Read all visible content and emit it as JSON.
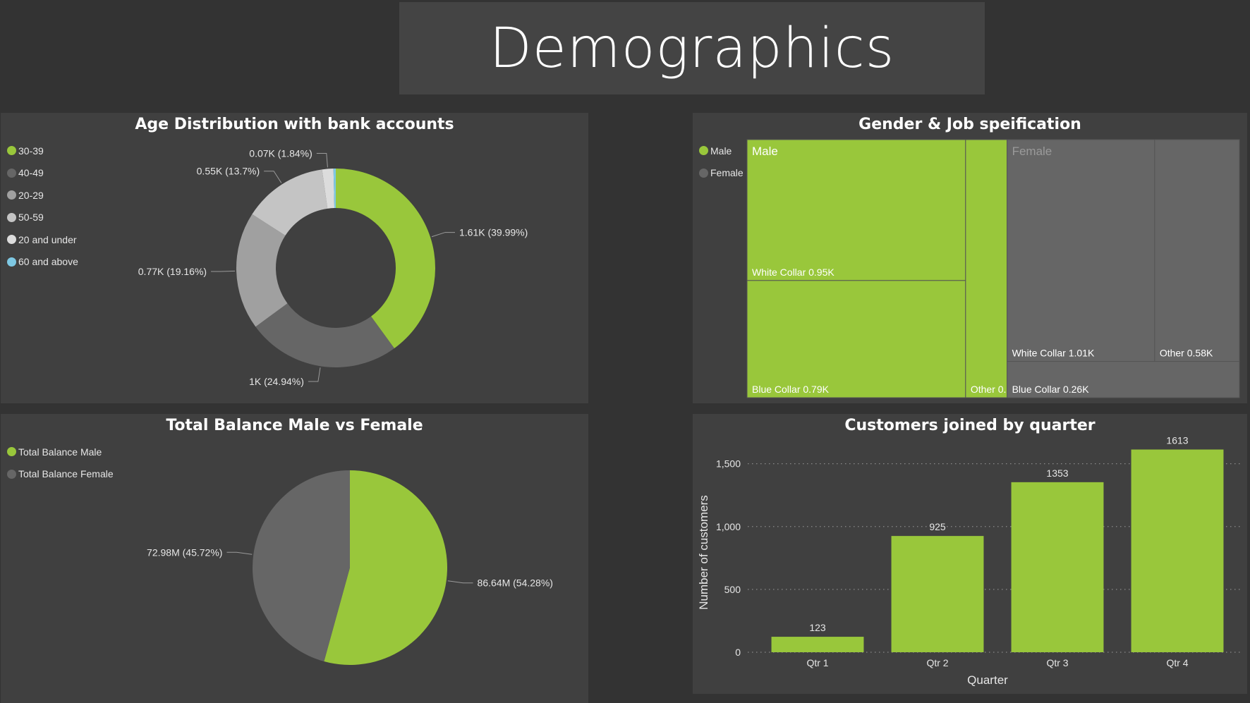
{
  "page": {
    "title": "Demographics"
  },
  "colors": {
    "green": "#99c73b",
    "dark_grey": "#666666",
    "mid_grey": "#a0a0a0",
    "light_grey": "#c4c4c4",
    "lighter_grey": "#d4d4d4",
    "blue": "#7ec8e3"
  },
  "chart_data": [
    {
      "type": "donut",
      "title": "Age Distribution with bank accounts",
      "legend_position": "top-left",
      "series": [
        {
          "name": "30-39",
          "value": 1.61,
          "percent": 39.99,
          "label": "1.61K (39.99%)",
          "color": "#99c73b"
        },
        {
          "name": "40-49",
          "value": 1.0,
          "percent": 24.94,
          "label": "1K (24.94%)",
          "color": "#666666"
        },
        {
          "name": "20-29",
          "value": 0.77,
          "percent": 19.16,
          "label": "0.77K (19.16%)",
          "color": "#a0a0a0"
        },
        {
          "name": "50-59",
          "value": 0.55,
          "percent": 13.7,
          "label": "0.55K (13.7%)",
          "color": "#c4c4c4"
        },
        {
          "name": "20 and under",
          "value": 0.07,
          "percent": 1.84,
          "label": "0.07K (1.84%)",
          "color": "#dcdcdc"
        },
        {
          "name": "60 and above",
          "value": 0.02,
          "percent": 0.37,
          "label": "",
          "color": "#7ec8e3"
        }
      ]
    },
    {
      "type": "treemap",
      "title": "Gender & Job speification",
      "legend": [
        {
          "name": "Male",
          "color": "#99c73b"
        },
        {
          "name": "Female",
          "color": "#666666"
        }
      ],
      "groups": [
        {
          "name": "Male",
          "color": "#99c73b",
          "children": [
            {
              "name": "White Collar",
              "value": 0.95,
              "label": "White Collar 0.95K"
            },
            {
              "name": "Blue Collar",
              "value": 0.79,
              "label": "Blue Collar 0.79K"
            },
            {
              "name": "Other",
              "value": 0.33,
              "label": "Other 0..."
            }
          ]
        },
        {
          "name": "Female",
          "color": "#666666",
          "children": [
            {
              "name": "White Collar",
              "value": 1.01,
              "label": "White Collar 1.01K"
            },
            {
              "name": "Other",
              "value": 0.58,
              "label": "Other 0.58K"
            },
            {
              "name": "Blue Collar",
              "value": 0.26,
              "label": "Blue Collar 0.26K"
            }
          ]
        }
      ]
    },
    {
      "type": "pie",
      "title": "Total Balance Male vs Female",
      "legend_position": "top-left",
      "series": [
        {
          "name": "Total Balance Male",
          "value": 86.64,
          "percent": 54.28,
          "label": "86.64M (54.28%)",
          "color": "#99c73b"
        },
        {
          "name": "Total Balance Female",
          "value": 72.98,
          "percent": 45.72,
          "label": "72.98M (45.72%)",
          "color": "#666666"
        }
      ]
    },
    {
      "type": "bar",
      "title": "Customers joined by quarter",
      "xlabel": "Quarter",
      "ylabel": "Number of customers",
      "categories": [
        "Qtr 1",
        "Qtr 2",
        "Qtr 3",
        "Qtr 4"
      ],
      "values": [
        123,
        925,
        1353,
        1613
      ],
      "ylim": [
        0,
        1700
      ],
      "yticks": [
        0,
        500,
        1000,
        1500
      ],
      "ytick_labels": [
        "0",
        "500",
        "1,000",
        "1,500"
      ],
      "grid": "horizontal-dotted",
      "color": "#99c73b"
    }
  ]
}
